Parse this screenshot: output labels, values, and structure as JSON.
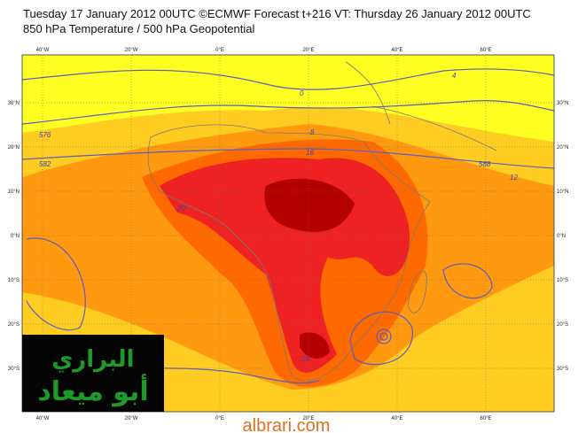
{
  "header": {
    "line1": "Tuesday 17 January 2012 00UTC ©ECMWF Forecast t+216 VT: Thursday 26 January 2012 00UTC",
    "line2": "850 hPa Temperature / 500 hPa Geopotential"
  },
  "map": {
    "longitude_labels": [
      "40°W",
      "20°W",
      "0°E",
      "20°E",
      "40°E",
      "60°E"
    ],
    "latitude_labels": [
      "30°N",
      "20°N",
      "10°N",
      "0°N",
      "10°S",
      "20°S",
      "30°S"
    ],
    "contour_labels": [
      "576",
      "582",
      "588",
      "16",
      "20",
      "24",
      "12",
      "8",
      "4",
      "0"
    ]
  },
  "watermark": {
    "line1": "البراري",
    "line2": "أبو ميعاد"
  },
  "footer": "albrari.com"
}
